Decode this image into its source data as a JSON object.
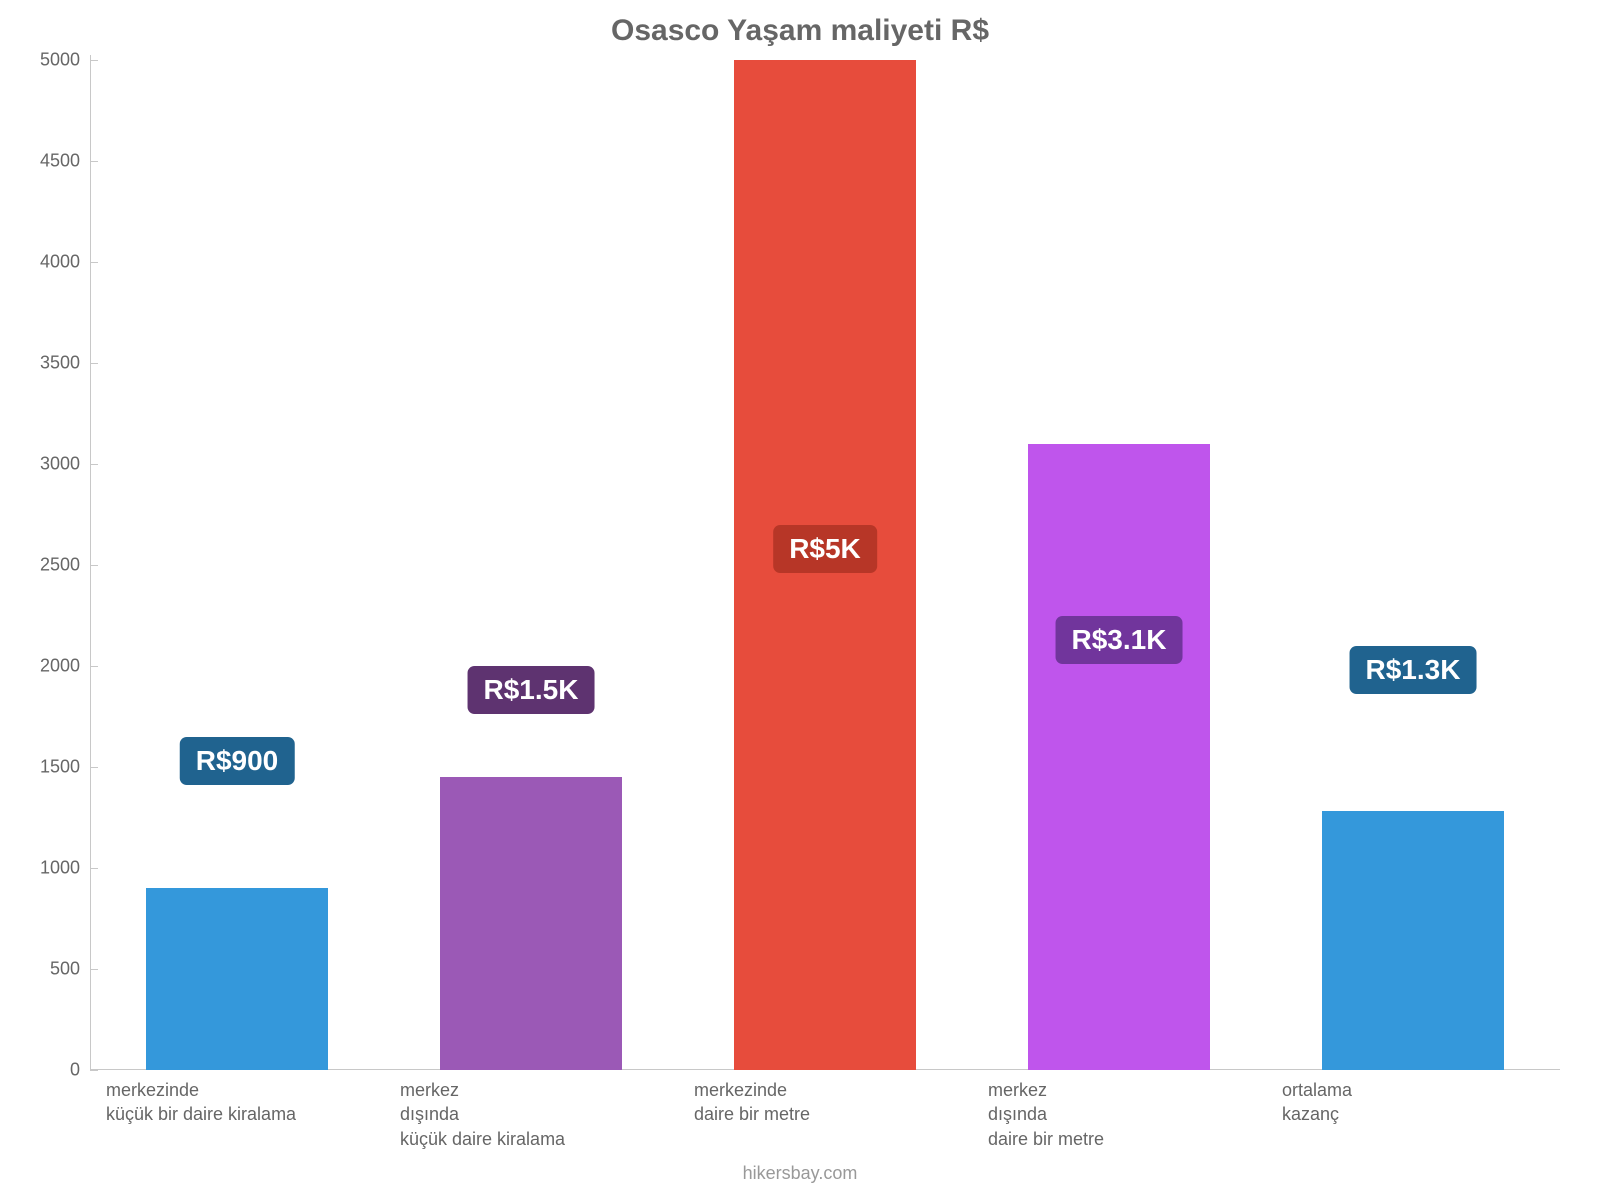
{
  "chart": {
    "type": "bar",
    "title": "Osasco Yaşam maliyeti R$",
    "title_fontsize": 30,
    "title_color": "#666666",
    "background_color": "#ffffff",
    "ymax": 5000,
    "ytick_step": 500,
    "ytick_labels": [
      "0",
      "500",
      "1000",
      "1500",
      "2000",
      "2500",
      "3000",
      "3500",
      "4000",
      "4500",
      "5000"
    ],
    "ytick_fontsize": 18,
    "axis_color": "#c8c8c8",
    "bar_width_pct": 62,
    "value_badge_fontsize": 28,
    "xlabel_fontsize": 18,
    "attribution": "hikersbay.com",
    "attribution_fontsize": 18,
    "attribution_color": "#999999",
    "bars": [
      {
        "label": "merkezinde\nküçük bir daire kiralama",
        "value": 900,
        "display_value": "R$900",
        "color": "#3498db",
        "badge_color": "#20638f",
        "badge_offset_pct": 67
      },
      {
        "label": "merkez\ndışında\nküçük daire kiralama",
        "value": 1450,
        "display_value": "R$1.5K",
        "color": "#9b59b6",
        "badge_color": "#5e3370",
        "badge_offset_pct": 60
      },
      {
        "label": "merkezinde\ndaire bir metre",
        "value": 5000,
        "display_value": "R$5K",
        "color": "#e74c3c",
        "badge_color": "#b73627",
        "badge_offset_pct": 46
      },
      {
        "label": "merkez\ndışında\ndaire bir metre",
        "value": 3100,
        "display_value": "R$3.1K",
        "color": "#bf55ec",
        "badge_color": "#71359c",
        "badge_offset_pct": 55
      },
      {
        "label": "ortalama\nkazanç",
        "value": 1280,
        "display_value": "R$1.3K",
        "color": "#3498db",
        "badge_color": "#20638f",
        "badge_offset_pct": 58
      }
    ]
  }
}
